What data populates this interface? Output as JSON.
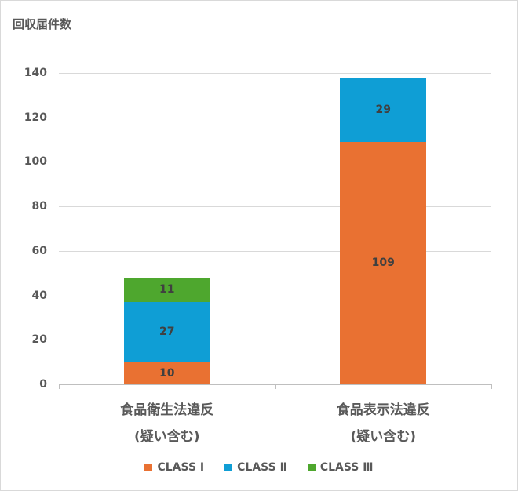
{
  "chart_data": {
    "type": "bar",
    "stacked": true,
    "title": "",
    "ylabel": "回収届件数",
    "xlabel": "",
    "categories": [
      "食品衛生法違反\n(疑い含む)",
      "食品表示法違反\n(疑い含む)"
    ],
    "category_lines": [
      [
        "食品衛生法違反",
        "(疑い含む)"
      ],
      [
        "食品表示法違反",
        "(疑い含む)"
      ]
    ],
    "series": [
      {
        "name": "CLASSⅠ",
        "color": "#E97132",
        "values": [
          10,
          109
        ]
      },
      {
        "name": "CLASSⅡ",
        "color": "#0F9ED5",
        "values": [
          27,
          29
        ]
      },
      {
        "name": "CLASSⅢ",
        "color": "#4EA72E",
        "values": [
          11,
          0
        ]
      }
    ],
    "ylim": [
      0,
      140
    ],
    "yticks": [
      0,
      20,
      40,
      60,
      80,
      100,
      120,
      140
    ],
    "grid": true,
    "legend_position": "bottom",
    "data_labels": true
  },
  "labels": {
    "y_title": "回収届件数",
    "legend": [
      "CLASS Ⅰ",
      "CLASS Ⅱ",
      "CLASS Ⅲ"
    ]
  }
}
